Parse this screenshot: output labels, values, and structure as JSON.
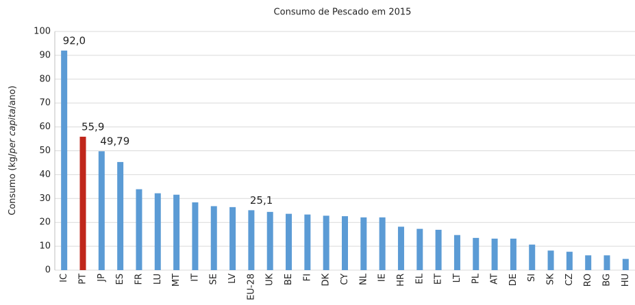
{
  "chart_data": {
    "type": "bar",
    "title": "Consumo de Pescado em 2015",
    "ylabel": [
      "Consumo (kg/",
      "per capita",
      "/ano)"
    ],
    "categories": [
      "IC",
      "PT",
      "JP",
      "ES",
      "FR",
      "LU",
      "MT",
      "IT",
      "SE",
      "LV",
      "EU-28",
      "UK",
      "BE",
      "FI",
      "DK",
      "CY",
      "NL",
      "IE",
      "HR",
      "EL",
      "ET",
      "LT",
      "PL",
      "AT",
      "DE",
      "SI",
      "SK",
      "CZ",
      "RO",
      "BG",
      "HU"
    ],
    "values": [
      92.0,
      55.9,
      49.79,
      45.3,
      33.9,
      32.2,
      31.6,
      28.4,
      26.8,
      26.4,
      25.1,
      24.4,
      23.6,
      23.3,
      22.8,
      22.6,
      22.1,
      22.1,
      18.2,
      17.3,
      16.9,
      14.7,
      13.5,
      13.2,
      13.2,
      10.7,
      8.2,
      7.7,
      6.2,
      6.2,
      4.7
    ],
    "value_labels": [
      "92,0",
      "55,9",
      "49,79",
      null,
      null,
      null,
      null,
      null,
      null,
      null,
      "25,1",
      null,
      null,
      null,
      null,
      null,
      null,
      null,
      null,
      null,
      null,
      null,
      null,
      null,
      null,
      null,
      null,
      null,
      null,
      null,
      null
    ],
    "color": "#5b9bd5",
    "colors": [
      "#5b9bd5",
      "#c0271b",
      "#5b9bd5",
      "#5b9bd5",
      "#5b9bd5",
      "#5b9bd5",
      "#5b9bd5",
      "#5b9bd5",
      "#5b9bd5",
      "#5b9bd5",
      "#5b9bd5",
      "#5b9bd5",
      "#5b9bd5",
      "#5b9bd5",
      "#5b9bd5",
      "#5b9bd5",
      "#5b9bd5",
      "#5b9bd5",
      "#5b9bd5",
      "#5b9bd5",
      "#5b9bd5",
      "#5b9bd5",
      "#5b9bd5",
      "#5b9bd5",
      "#5b9bd5",
      "#5b9bd5",
      "#5b9bd5",
      "#5b9bd5",
      "#5b9bd5",
      "#5b9bd5",
      "#5b9bd5"
    ],
    "ylim": [
      0,
      100
    ],
    "yticks": [
      0,
      10,
      20,
      30,
      40,
      50,
      60,
      70,
      80,
      90,
      100
    ],
    "grid": true
  }
}
